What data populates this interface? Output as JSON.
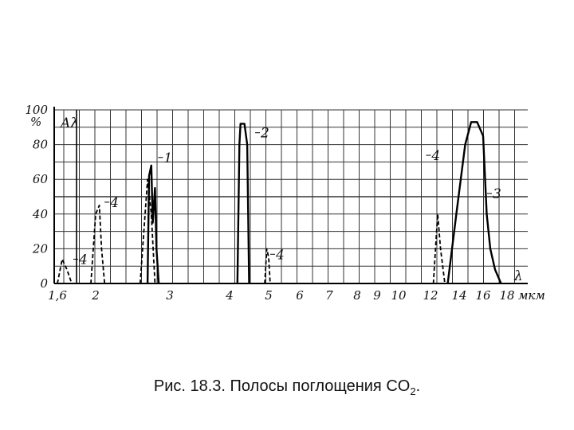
{
  "chart_data": {
    "type": "line",
    "x_unit": "мкм",
    "x_axis_symbol": "λ",
    "y_axis_symbol": "Aλ",
    "y_unit_label": "%",
    "ylim": [
      0,
      100
    ],
    "y_ticks": [
      "0",
      "20",
      "40",
      "60",
      "80",
      "100"
    ],
    "x_ticks": [
      "1,6",
      "2",
      "3",
      "4",
      "5",
      "6",
      "7",
      "8",
      "9",
      "10",
      "12",
      "14",
      "16",
      "18"
    ],
    "grid": true,
    "series": [
      {
        "name": "1",
        "style": "solid",
        "x": [
          "2,7",
          "2,72",
          "2,75",
          "2,77",
          "2,8",
          "2,82",
          "2,85"
        ],
        "y": [
          0,
          62,
          68,
          35,
          55,
          20,
          0
        ]
      },
      {
        "name": "2",
        "style": "solid",
        "x": [
          "4,2",
          "4,25",
          "4,28",
          "4,32",
          "4,38",
          "4,45",
          "4,5"
        ],
        "y": [
          0,
          80,
          92,
          92,
          92,
          80,
          0
        ]
      },
      {
        "name": "3",
        "style": "solid",
        "x": [
          "13,2",
          "13,8",
          "14,5",
          "15",
          "15,5",
          "16",
          "16,3",
          "16,6",
          "17",
          "17,5"
        ],
        "y": [
          0,
          40,
          80,
          93,
          93,
          85,
          40,
          20,
          8,
          0
        ]
      },
      {
        "name": "4",
        "style": "dashed",
        "x": [
          "1,6",
          "1,65",
          "1,7",
          "1,75",
          "1,95",
          "2,0",
          "2,05",
          "2,08",
          "2,12",
          "2,6",
          "2,7",
          "2,75",
          "2,8",
          "4,9",
          "4,95",
          "5,0",
          "5,05",
          "12,2",
          "12,5",
          "12,7",
          "13,0"
        ],
        "y": [
          0,
          14,
          8,
          0,
          0,
          40,
          45,
          20,
          0,
          0,
          60,
          40,
          0,
          0,
          20,
          15,
          0,
          0,
          40,
          20,
          0
        ]
      }
    ]
  },
  "caption": {
    "text": "Рис. 18.3. Полосы поглощения CO",
    "subscript": "2",
    "suffix": "."
  }
}
